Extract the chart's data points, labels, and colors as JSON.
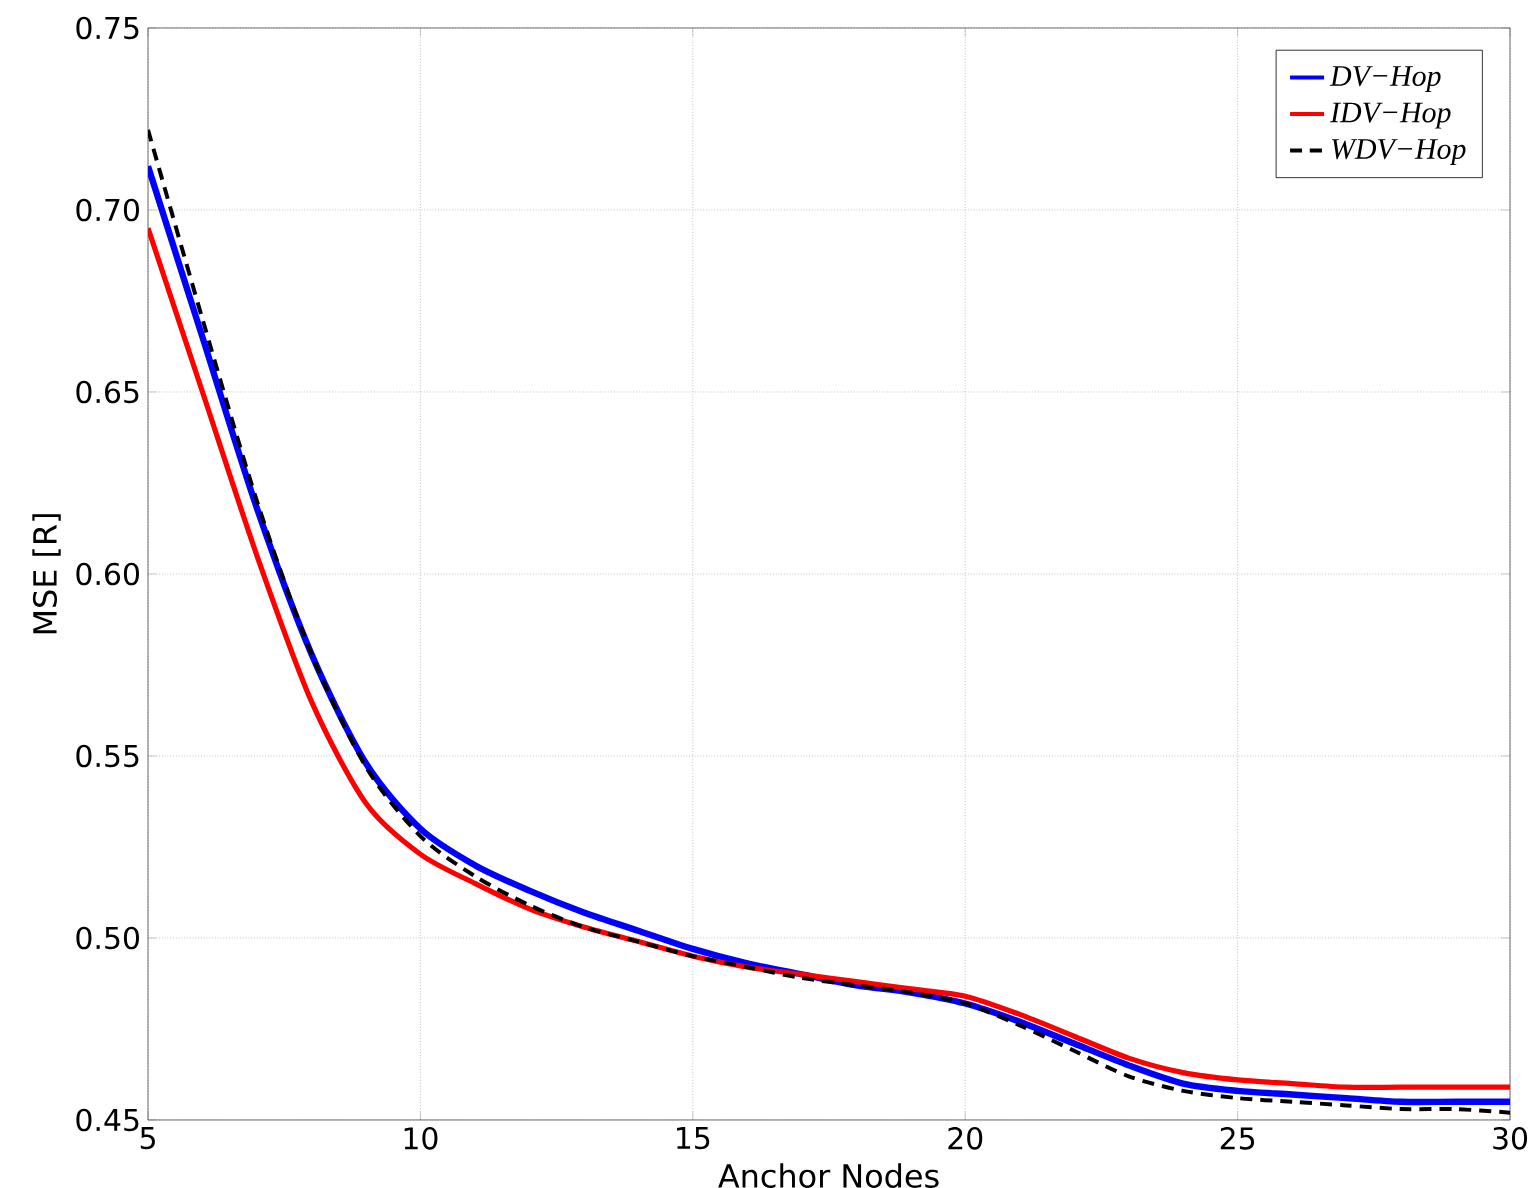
{
  "chart_data": {
    "type": "line",
    "xlabel": "Anchor Nodes",
    "ylabel": "MSE [R]",
    "x": [
      5,
      6,
      7,
      8,
      9,
      10,
      11,
      12,
      13,
      14,
      15,
      16,
      17,
      18,
      19,
      20,
      21,
      22,
      23,
      24,
      25,
      26,
      27,
      28,
      29,
      30
    ],
    "series": [
      {
        "name": "DV−Hop",
        "color": "#0000ff",
        "line_style": "solid",
        "values": [
          0.712,
          0.665,
          0.618,
          0.578,
          0.548,
          0.53,
          0.52,
          0.513,
          0.507,
          0.502,
          0.497,
          0.493,
          0.49,
          0.487,
          0.485,
          0.482,
          0.477,
          0.471,
          0.465,
          0.46,
          0.458,
          0.457,
          0.456,
          0.455,
          0.455,
          0.455
        ]
      },
      {
        "name": "IDV−Hop",
        "color": "#ff0000",
        "line_style": "solid",
        "values": [
          0.695,
          0.65,
          0.605,
          0.565,
          0.537,
          0.523,
          0.515,
          0.508,
          0.503,
          0.499,
          0.495,
          0.492,
          0.49,
          0.488,
          0.486,
          0.484,
          0.479,
          0.473,
          0.467,
          0.463,
          0.461,
          0.46,
          0.459,
          0.459,
          0.459,
          0.459
        ]
      },
      {
        "name": "WDV−Hop",
        "color": "#000000",
        "line_style": "dashed",
        "values": [
          0.722,
          0.67,
          0.62,
          0.578,
          0.547,
          0.528,
          0.517,
          0.509,
          0.503,
          0.499,
          0.495,
          0.492,
          0.489,
          0.487,
          0.485,
          0.482,
          0.476,
          0.469,
          0.462,
          0.458,
          0.456,
          0.455,
          0.454,
          0.453,
          0.453,
          0.452
        ]
      }
    ],
    "xlim": [
      5,
      30
    ],
    "xticks": [
      5,
      10,
      15,
      20,
      25,
      30
    ],
    "ylim": [
      0.45,
      0.75
    ],
    "yticks": [
      0.45,
      {
        "value": 0.5,
        "label": "0.50"
      },
      0.55,
      {
        "value": 0.6,
        "label": "0.60"
      },
      0.65,
      {
        "value": 0.7,
        "label": "0.70"
      },
      0.75
    ],
    "grid": true,
    "legend": "top right",
    "marker": "none"
  }
}
